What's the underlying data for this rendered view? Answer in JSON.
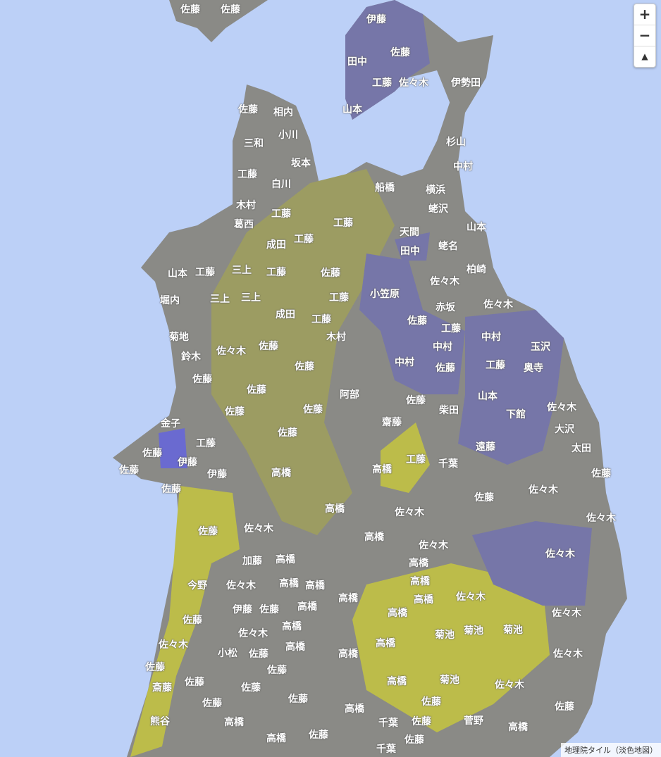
{
  "map": {
    "colors": {
      "sea": "#bcd0f7",
      "land_gray": "#8a8a86",
      "land_olive": "#9c9c62",
      "land_yellow": "#bcbc4a",
      "land_purple": "#7676a8"
    },
    "labels": [
      "佐藤",
      "佐藤",
      "伊藤",
      "佐藤",
      "田中",
      "工藤",
      "佐々木",
      "伊勢田",
      "山本",
      "佐藤",
      "相内",
      "小川",
      "三和",
      "坂本",
      "工藤",
      "白川",
      "杉山",
      "中村",
      "船橋",
      "横浜",
      "蛯沢",
      "木村",
      "工藤",
      "工藤",
      "葛西",
      "成田",
      "工藤",
      "天間",
      "蛯名",
      "山本",
      "田中",
      "山本",
      "工藤",
      "三上",
      "工藤",
      "佐藤",
      "柏崎",
      "佐々木",
      "堀内",
      "三上",
      "三上",
      "工藤",
      "小笠原",
      "成田",
      "工藤",
      "赤坂",
      "佐藤",
      "佐々木",
      "菊地",
      "木村",
      "工藤",
      "中村",
      "中村",
      "玉沢",
      "鈴木",
      "佐々木",
      "佐藤",
      "中村",
      "佐藤",
      "工藤",
      "奥寺",
      "佐藤",
      "佐藤",
      "阿部",
      "佐藤",
      "山本",
      "佐藤",
      "佐藤",
      "佐藤",
      "柴田",
      "下館",
      "佐々木",
      "金子",
      "齋藤",
      "大沢",
      "佐藤",
      "工藤",
      "佐藤",
      "工藤",
      "遠藤",
      "太田",
      "伊藤",
      "佐藤",
      "高橋",
      "千葉",
      "佐藤",
      "伊藤",
      "佐々木",
      "佐藤",
      "高橋",
      "佐藤",
      "佐々木",
      "高橋",
      "佐々木",
      "佐藤",
      "佐々木",
      "高橋",
      "佐々木",
      "佐々木",
      "加藤",
      "高橋",
      "高橋",
      "今野",
      "佐々木",
      "高橋",
      "高橋",
      "高橋",
      "佐々木",
      "高橋",
      "伊藤",
      "佐藤",
      "高橋",
      "高橋",
      "佐藤",
      "佐々木",
      "高橋",
      "菊池",
      "菊池",
      "菊池",
      "佐々木",
      "佐々木",
      "高橋",
      "高橋",
      "小松",
      "佐藤",
      "高橋",
      "高橋",
      "佐々木",
      "佐藤",
      "佐藤",
      "斎藤",
      "佐藤",
      "佐藤",
      "高橋",
      "菊池",
      "佐々木",
      "佐藤",
      "佐藤",
      "高橋",
      "佐藤",
      "熊谷",
      "佐藤",
      "高橋",
      "千葉",
      "佐藤",
      "菅野",
      "高橋",
      "高橋",
      "佐藤",
      "千葉",
      "佐藤"
    ]
  },
  "controls": {
    "zoom_in": "+",
    "zoom_out": "−",
    "compass": "▲"
  },
  "attribution": "地理院タイル（淡色地図）"
}
